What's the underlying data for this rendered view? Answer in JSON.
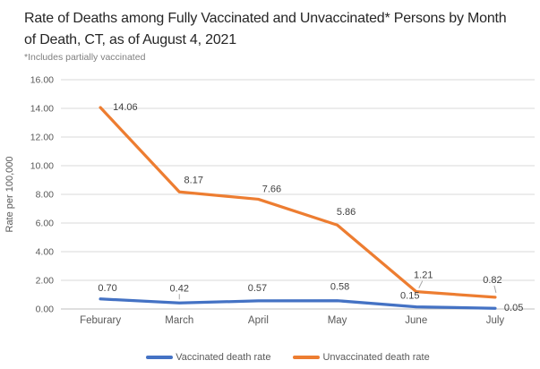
{
  "chart_data": {
    "type": "line",
    "title": "Rate of Deaths among Fully Vaccinated and Unvaccinated* Persons by Month of Death, CT, as of August 4, 2021",
    "subtitle": "*Includes partially vaccinated",
    "categories": [
      "Feburary",
      "March",
      "April",
      "May",
      "June",
      "July"
    ],
    "series": [
      {
        "name": "Vaccinated death rate",
        "color": "#4472C4",
        "values": [
          0.7,
          0.42,
          0.57,
          0.58,
          0.15,
          0.05
        ],
        "data_labels": [
          "0.70",
          "0.42",
          "0.57",
          "0.58",
          "0.15",
          "0.05"
        ]
      },
      {
        "name": "Unvaccinated death rate",
        "color": "#ED7D31",
        "values": [
          14.06,
          8.17,
          7.66,
          5.86,
          1.21,
          0.82
        ],
        "data_labels": [
          "14.06",
          "8.17",
          "7.66",
          "5.86",
          "1.21",
          "0.82"
        ]
      }
    ],
    "xlabel": "",
    "ylabel": "Rate per 100,000",
    "ylim": [
      0,
      16
    ],
    "ytick_step": 2,
    "ytick_labels": [
      "0.00",
      "2.00",
      "4.00",
      "6.00",
      "8.00",
      "10.00",
      "12.00",
      "14.00",
      "16.00"
    ],
    "grid": "horizontal",
    "legend_position": "bottom"
  },
  "colors": {
    "vaccinated_line": "#4472C4",
    "unvaccinated_line": "#ED7D31",
    "gridline": "#D9D9D9",
    "axis_line": "#BFBFBF",
    "axis_text": "#595959",
    "data_label_text": "#404040",
    "title_text": "#262626",
    "footnote_text": "#7F7F7F",
    "leader_line": "#A6A6A6"
  }
}
